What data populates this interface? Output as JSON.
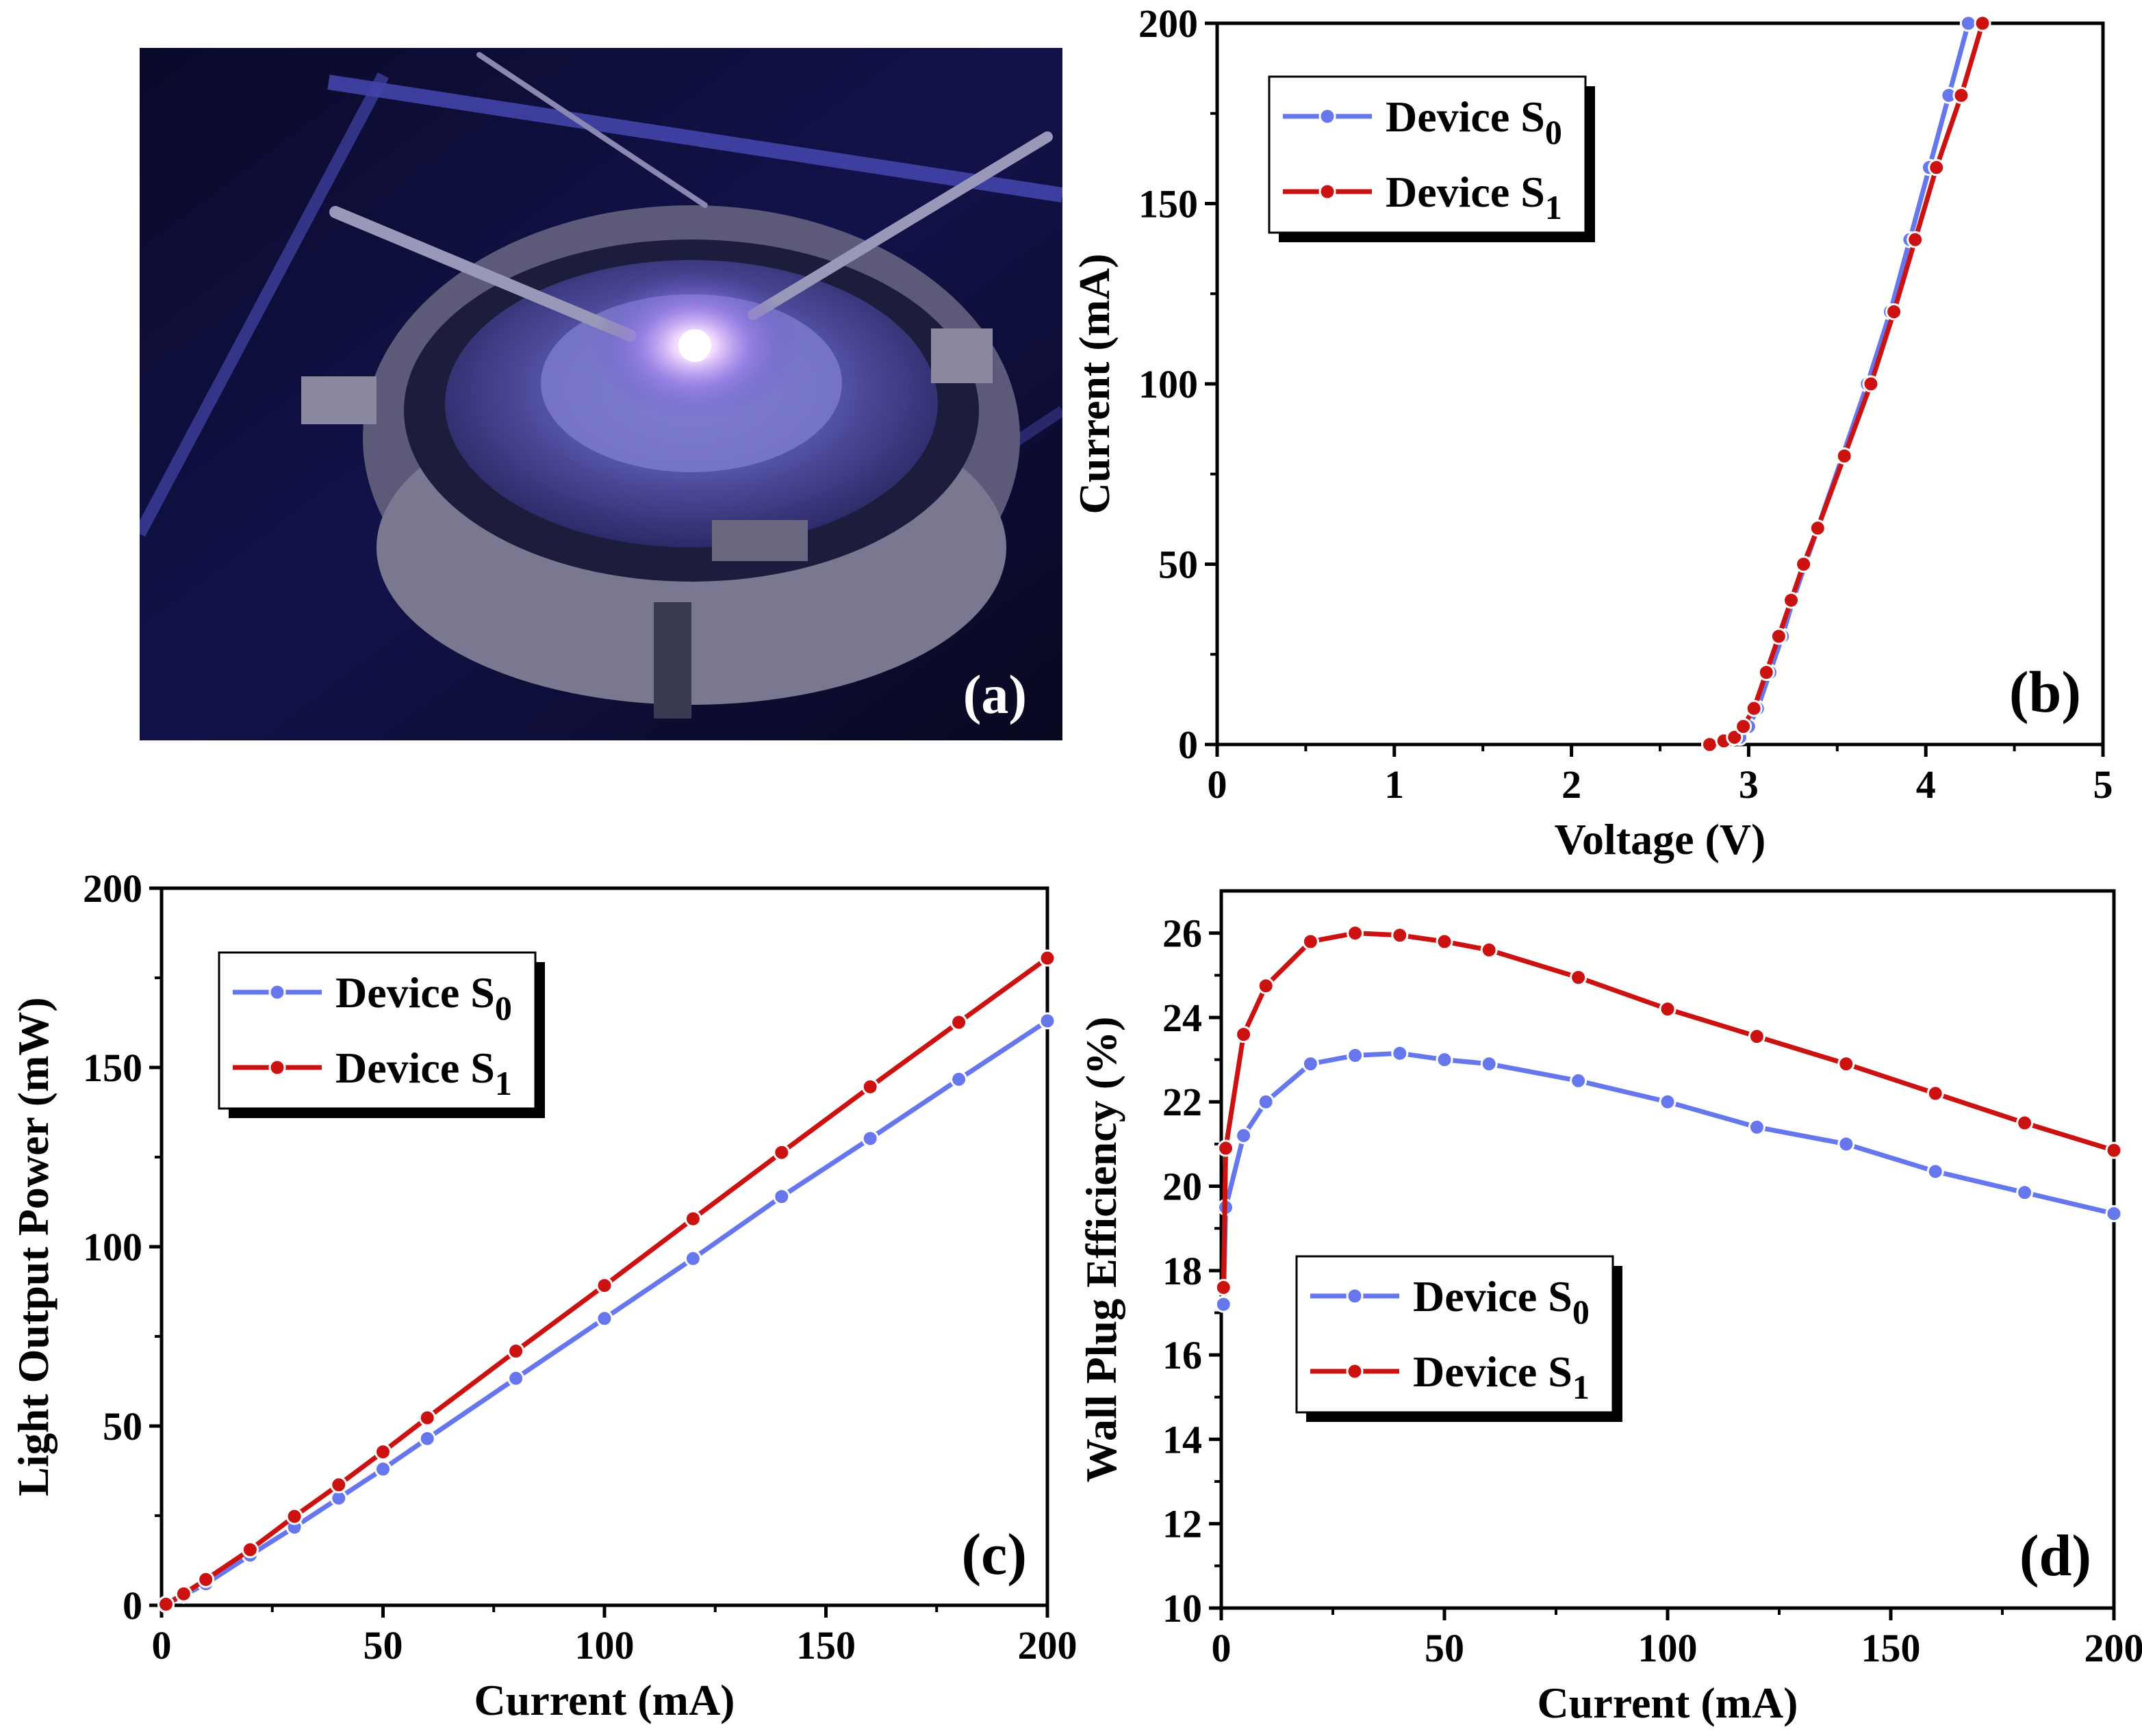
{
  "figure": {
    "photo_label": "(a)",
    "photo_description": "photo of a blue-violet LED chip probed by two needles on a wafer stage"
  },
  "colors": {
    "s0": "#6677ee",
    "s1": "#cc1111",
    "axis": "#000000"
  },
  "chart_data": [
    {
      "id": "b",
      "panel_label": "(b)",
      "type": "line",
      "xlabel": "Voltage (V)",
      "ylabel": "Current (mA)",
      "xlim": [
        0,
        5
      ],
      "ylim": [
        0,
        200
      ],
      "xticks": [
        0,
        1,
        2,
        3,
        4,
        5
      ],
      "yticks": [
        0,
        50,
        100,
        150,
        200
      ],
      "xtick_labels": [
        "0",
        "1",
        "2",
        "3",
        "4",
        "5"
      ],
      "ytick_labels": [
        "0",
        "50",
        "100",
        "150",
        "200"
      ],
      "legend_position": "top-left",
      "series": [
        {
          "name": "Device S",
          "sub": "0",
          "color": "#6677ee",
          "x": [
            2.78,
            2.88,
            2.95,
            3.0,
            3.05,
            3.12,
            3.19,
            3.25,
            3.32,
            3.39,
            3.53,
            3.67,
            3.8,
            3.91,
            4.02,
            4.13,
            4.24
          ],
          "y": [
            0,
            1,
            2,
            5,
            10,
            20,
            30,
            40,
            50,
            60,
            80,
            100,
            120,
            140,
            160,
            180,
            200
          ]
        },
        {
          "name": "Device S",
          "sub": "1",
          "color": "#cc1111",
          "x": [
            2.78,
            2.86,
            2.92,
            2.97,
            3.03,
            3.1,
            3.17,
            3.24,
            3.31,
            3.39,
            3.54,
            3.69,
            3.82,
            3.94,
            4.06,
            4.2,
            4.32
          ],
          "y": [
            0,
            1,
            2,
            5,
            10,
            20,
            30,
            40,
            50,
            60,
            80,
            100,
            120,
            140,
            160,
            180,
            200
          ]
        }
      ]
    },
    {
      "id": "c",
      "panel_label": "(c)",
      "type": "line",
      "xlabel": "Current (mA)",
      "ylabel": "Light Output Power (mW)",
      "xlim": [
        0,
        200
      ],
      "ylim": [
        0,
        200
      ],
      "xticks": [
        0,
        50,
        100,
        150,
        200
      ],
      "yticks": [
        0,
        50,
        100,
        150,
        200
      ],
      "xtick_labels": [
        "0",
        "50",
        "100",
        "150",
        "200"
      ],
      "ytick_labels": [
        "0",
        "50",
        "100",
        "150",
        "200"
      ],
      "legend_position": "top-left",
      "series": [
        {
          "name": "Device S",
          "sub": "0",
          "color": "#6677ee",
          "x": [
            1,
            5,
            10,
            20,
            30,
            40,
            50,
            60,
            80,
            100,
            120,
            140,
            160,
            180,
            200
          ],
          "y": [
            0.2,
            2.8,
            6.0,
            14.0,
            21.8,
            29.9,
            38.0,
            46.5,
            63.3,
            80.0,
            96.7,
            114.0,
            130.2,
            146.7,
            163.0
          ]
        },
        {
          "name": "Device S",
          "sub": "1",
          "color": "#cc1111",
          "x": [
            1,
            5,
            10,
            20,
            30,
            40,
            50,
            60,
            80,
            100,
            120,
            140,
            160,
            180,
            200
          ],
          "y": [
            0.3,
            3.2,
            7.2,
            15.5,
            24.8,
            33.6,
            42.8,
            52.3,
            70.9,
            89.2,
            107.8,
            126.3,
            144.6,
            162.6,
            180.5
          ]
        }
      ]
    },
    {
      "id": "d",
      "panel_label": "(d)",
      "type": "line",
      "xlabel": "Current (mA)",
      "ylabel": "Wall Plug Efficiency (%)",
      "xlim": [
        0,
        200
      ],
      "ylim": [
        10,
        27
      ],
      "xticks": [
        0,
        50,
        100,
        150,
        200
      ],
      "yticks": [
        10,
        12,
        14,
        16,
        18,
        20,
        22,
        24,
        26
      ],
      "xtick_labels": [
        "0",
        "50",
        "100",
        "150",
        "200"
      ],
      "ytick_labels": [
        "10",
        "12",
        "14",
        "16",
        "18",
        "20",
        "22",
        "24",
        "26"
      ],
      "legend_position": "bottom-left",
      "series": [
        {
          "name": "Device S",
          "sub": "0",
          "color": "#6677ee",
          "x": [
            0.5,
            1,
            5,
            10,
            20,
            30,
            40,
            50,
            60,
            80,
            100,
            120,
            140,
            160,
            180,
            200
          ],
          "y": [
            17.2,
            19.5,
            21.2,
            22.0,
            22.9,
            23.1,
            23.15,
            23.0,
            22.9,
            22.5,
            22.0,
            21.4,
            21.0,
            20.35,
            19.85,
            19.35
          ]
        },
        {
          "name": "Device S",
          "sub": "1",
          "color": "#cc1111",
          "x": [
            0.5,
            1,
            5,
            10,
            20,
            30,
            40,
            50,
            60,
            80,
            100,
            120,
            140,
            160,
            180,
            200
          ],
          "y": [
            17.6,
            20.9,
            23.6,
            24.75,
            25.8,
            26.0,
            25.95,
            25.8,
            25.6,
            24.95,
            24.2,
            23.55,
            22.9,
            22.2,
            21.5,
            20.85
          ]
        }
      ]
    }
  ]
}
